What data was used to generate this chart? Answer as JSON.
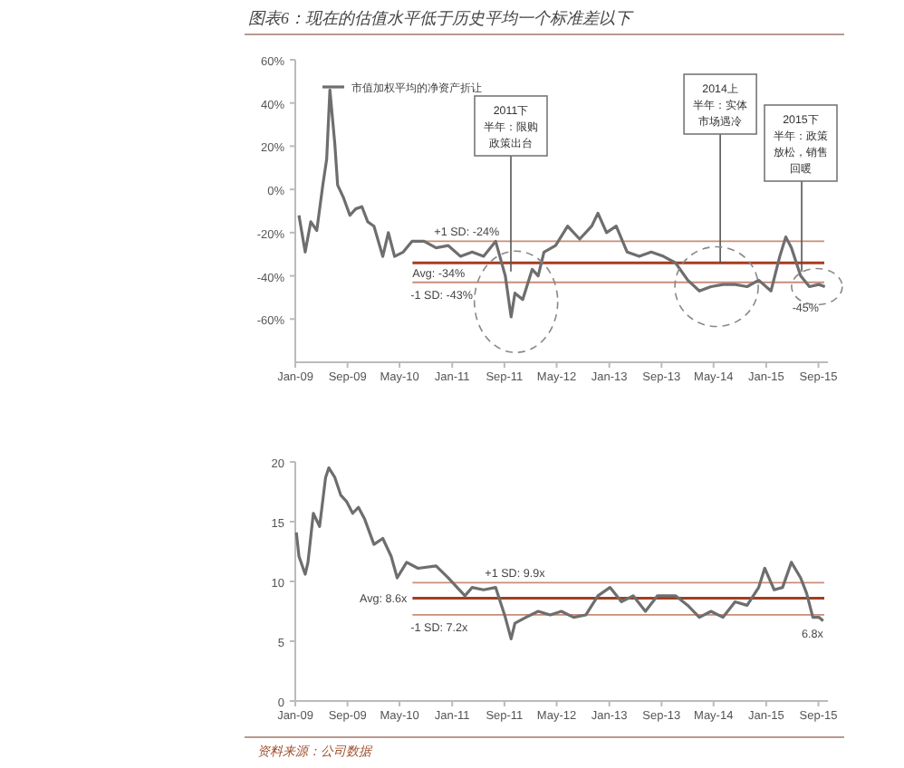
{
  "chart_data": [
    {
      "type": "line",
      "title": "图表6：现在的估值水平低于历史平均一个标准差以下",
      "legend": "top left",
      "grid": false,
      "x": [
        "2009-01-18",
        "2009-02-16",
        "2009-03-14",
        "2009-04-11",
        "2009-05-09",
        "2009-05-27",
        "2009-06-11",
        "2009-07-04",
        "2009-07-17",
        "2009-08-14",
        "2009-09-12",
        "2009-10-09",
        "2009-11-07",
        "2009-12-04",
        "2010-01-02",
        "2010-02-12",
        "2010-03-10",
        "2010-04-08",
        "2010-05-18",
        "2010-06-28",
        "2010-08-23",
        "2010-10-18",
        "2010-12-14",
        "2011-02-09",
        "2011-04-04",
        "2011-05-27",
        "2011-07-22",
        "2011-09-05",
        "2011-10-02",
        "2011-10-20",
        "2011-11-25",
        "2012-01-08",
        "2012-02-05",
        "2012-03-03",
        "2012-04-26",
        "2012-06-21",
        "2012-08-16",
        "2012-10-11",
        "2012-11-09",
        "2012-12-19",
        "2013-02-02",
        "2013-03-25",
        "2013-05-20",
        "2013-07-15",
        "2013-09-10",
        "2013-11-05",
        "2014-01-01",
        "2014-02-24",
        "2014-04-19",
        "2014-06-14",
        "2014-08-09",
        "2014-10-04",
        "2014-11-27",
        "2015-01-23",
        "2015-03-05",
        "2015-04-02",
        "2015-04-28",
        "2015-06-10",
        "2015-07-21",
        "2015-09-03",
        "2015-10-01"
      ],
      "series": [
        {
          "name": "市值加权平均的净资产折让",
          "color": "#6e6e6e",
          "values": [
            -12,
            -29,
            -15,
            -19,
            2,
            14,
            46,
            21,
            2,
            -4,
            -12,
            -9,
            -8,
            -15,
            -17,
            -31,
            -20,
            -31,
            -29,
            -24,
            -24,
            -27,
            -26,
            -31,
            -29,
            -31,
            -24,
            -40,
            -59,
            -48,
            -51,
            -37,
            -40,
            -29,
            -26,
            -17,
            -23,
            -17,
            -11,
            -20,
            -17,
            -29,
            -31,
            -29,
            -31,
            -34,
            -42,
            -47,
            -45,
            -44,
            -44,
            -45,
            -42,
            -47,
            -31,
            -22,
            -27,
            -40,
            -45,
            -44,
            -45
          ]
        }
      ],
      "xlim": [
        "2009-01-01",
        "2015-10-15"
      ],
      "xticks": [
        {
          "value": "2009-01-01",
          "label": "Jan-09"
        },
        {
          "value": "2009-09-01",
          "label": "Sep-09"
        },
        {
          "value": "2010-05-01",
          "label": "May-10"
        },
        {
          "value": "2011-01-01",
          "label": "Jan-11"
        },
        {
          "value": "2011-09-01",
          "label": "Sep-11"
        },
        {
          "value": "2012-05-01",
          "label": "May-12"
        },
        {
          "value": "2013-01-01",
          "label": "Jan-13"
        },
        {
          "value": "2013-09-01",
          "label": "Sep-13"
        },
        {
          "value": "2014-05-01",
          "label": "May-14"
        },
        {
          "value": "2015-01-01",
          "label": "Jan-15"
        },
        {
          "value": "2015-09-01",
          "label": "Sep-15"
        }
      ],
      "ylim": [
        -80,
        60
      ],
      "yticks": [
        {
          "value": 60,
          "label": "60%"
        },
        {
          "value": 40,
          "label": "40%"
        },
        {
          "value": 20,
          "label": "20%"
        },
        {
          "value": 0,
          "label": "0%"
        },
        {
          "value": -20,
          "label": "-20%"
        },
        {
          "value": -40,
          "label": "-40%"
        },
        {
          "value": -60,
          "label": "-60%"
        }
      ],
      "ref_lines": [
        {
          "axis": "y",
          "value": -24,
          "label": "+1 SD: -24%",
          "color": "#c98d78"
        },
        {
          "axis": "y",
          "value": -34,
          "label": "Avg: -34%",
          "color": "#a33d20"
        },
        {
          "axis": "y",
          "value": -43,
          "label": "-1 SD: -43%",
          "color": "#c98d78"
        }
      ],
      "annotations": [
        {
          "text": "2011下半年：限购政策出台",
          "x": "2011-10-01",
          "y": -38
        },
        {
          "text": "2014上半年：实体市场遇冷",
          "x": "2014-06-01",
          "y": -34
        },
        {
          "text": "2015下半年：政策放松，销售回暖",
          "x": "2015-06-15",
          "y": -38
        },
        {
          "text": "-45%",
          "x": "2015-09-03",
          "y": -49
        }
      ]
    },
    {
      "type": "line",
      "grid": false,
      "x": [
        "2009-01-06",
        "2009-01-18",
        "2009-02-16",
        "2009-03-01",
        "2009-03-26",
        "2009-04-24",
        "2009-05-22",
        "2009-06-06",
        "2009-07-04",
        "2009-08-01",
        "2009-08-27",
        "2009-09-25",
        "2009-10-22",
        "2009-11-20",
        "2010-01-02",
        "2010-02-12",
        "2010-03-23",
        "2010-04-20",
        "2010-06-03",
        "2010-07-26",
        "2010-10-18",
        "2010-12-14",
        "2011-03-01",
        "2011-04-04",
        "2011-05-27",
        "2011-07-22",
        "2011-09-05",
        "2011-10-02",
        "2011-10-20",
        "2011-12-10",
        "2012-02-05",
        "2012-04-01",
        "2012-05-23",
        "2012-07-19",
        "2012-09-14",
        "2012-11-09",
        "2013-01-04",
        "2013-02-27",
        "2013-04-22",
        "2013-06-18",
        "2013-08-13",
        "2013-11-05",
        "2014-01-01",
        "2014-02-24",
        "2014-04-19",
        "2014-06-14",
        "2014-08-09",
        "2014-10-04",
        "2014-11-27",
        "2014-12-25",
        "2015-02-07",
        "2015-03-18",
        "2015-04-28",
        "2015-06-10",
        "2015-07-08",
        "2015-08-06",
        "2015-09-03",
        "2015-09-23"
      ],
      "series": [
        {
          "color": "#6e6e6e",
          "values": [
            14.1,
            12.1,
            10.6,
            11.6,
            15.7,
            14.6,
            18.7,
            19.5,
            18.7,
            17.2,
            16.7,
            15.7,
            16.2,
            15.2,
            13.1,
            13.6,
            12.1,
            10.3,
            11.6,
            11.1,
            11.3,
            10.3,
            8.8,
            9.5,
            9.3,
            9.5,
            7.0,
            5.2,
            6.5,
            7.0,
            7.5,
            7.2,
            7.5,
            7.0,
            7.2,
            8.8,
            9.5,
            8.3,
            8.8,
            7.5,
            8.8,
            8.8,
            8.0,
            7.0,
            7.5,
            7.0,
            8.3,
            8.0,
            9.5,
            11.1,
            9.3,
            9.5,
            11.6,
            10.3,
            9.0,
            7.0,
            7.0,
            6.7
          ]
        }
      ],
      "xlim": [
        "2009-01-01",
        "2015-10-15"
      ],
      "xticks": [
        {
          "value": "2009-01-01",
          "label": "Jan-09"
        },
        {
          "value": "2009-09-01",
          "label": "Sep-09"
        },
        {
          "value": "2010-05-01",
          "label": "May-10"
        },
        {
          "value": "2011-01-01",
          "label": "Jan-11"
        },
        {
          "value": "2011-09-01",
          "label": "Sep-11"
        },
        {
          "value": "2012-05-01",
          "label": "May-12"
        },
        {
          "value": "2013-01-01",
          "label": "Jan-13"
        },
        {
          "value": "2013-09-01",
          "label": "Sep-13"
        },
        {
          "value": "2014-05-01",
          "label": "May-14"
        },
        {
          "value": "2015-01-01",
          "label": "Jan-15"
        },
        {
          "value": "2015-09-01",
          "label": "Sep-15"
        }
      ],
      "ylim": [
        0,
        20
      ],
      "yticks": [
        0,
        5,
        10,
        15,
        20
      ],
      "ref_lines": [
        {
          "axis": "y",
          "value": 9.9,
          "label": "+1 SD: 9.9x",
          "color": "#c98d78"
        },
        {
          "axis": "y",
          "value": 8.6,
          "label": "Avg: 8.6x",
          "color": "#a33d20"
        },
        {
          "axis": "y",
          "value": 7.2,
          "label": "-1 SD: 7.2x",
          "color": "#c98d78"
        }
      ],
      "annotations": [
        {
          "text": "6.8x",
          "x": "2015-09-23",
          "y": 6.7
        },
        "资料来源：公司数据"
      ]
    }
  ]
}
